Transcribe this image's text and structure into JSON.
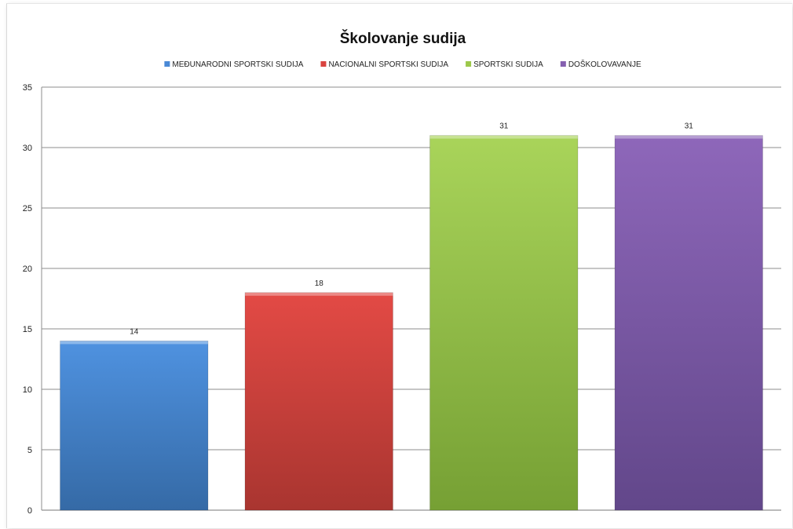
{
  "chart_data": {
    "type": "bar",
    "title": "Školovanje sudija",
    "xlabel": "",
    "ylabel": "",
    "ylim": [
      0,
      35
    ],
    "yticks": [
      0,
      5,
      10,
      15,
      20,
      25,
      30,
      35
    ],
    "grid": true,
    "legend_position": "top",
    "series": [
      {
        "name": "MEĐUNARODNI SPORTSKI SUDIJA",
        "values": [
          14
        ],
        "color": "#4a89d6"
      },
      {
        "name": "NACIONALNI SPORTSKI SUDIJA",
        "values": [
          18
        ],
        "color": "#d9433f"
      },
      {
        "name": "SPORTSKI SUDIJA",
        "values": [
          31
        ],
        "color": "#9cc84a"
      },
      {
        "name": "DOŠKOLOVAVANJE",
        "values": [
          31
        ],
        "color": "#8560b0"
      }
    ]
  }
}
